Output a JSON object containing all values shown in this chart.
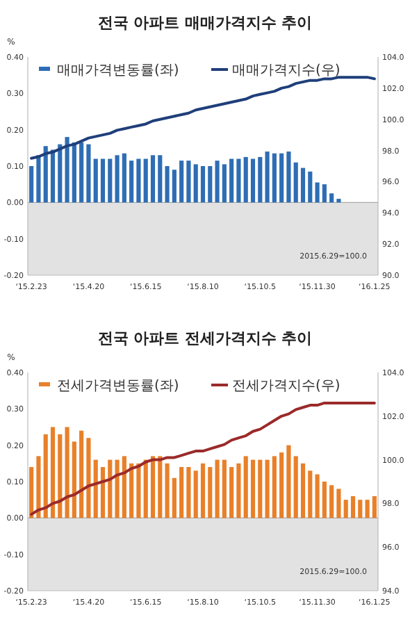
{
  "chart_data": [
    {
      "type": "bar",
      "title": "전국 아파트 매매가격지수 추이",
      "ylabel": "%",
      "legend": "top",
      "annotations": [
        "2015.6.29=100.0"
      ],
      "categories": [
        "‘15.2.23",
        null,
        null,
        null,
        null,
        null,
        null,
        null,
        "‘15.4.20",
        null,
        null,
        null,
        null,
        null,
        null,
        null,
        "‘15.6.15",
        null,
        null,
        null,
        null,
        null,
        null,
        null,
        "‘15.8.10",
        null,
        null,
        null,
        null,
        null,
        null,
        null,
        "‘15.10.5",
        null,
        null,
        null,
        null,
        null,
        null,
        null,
        "‘15.11.30",
        null,
        null,
        null,
        null,
        null,
        null,
        null,
        "‘16.1.25"
      ],
      "series": [
        {
          "name": "매매가격변동률(좌)",
          "color": "#2e6db4",
          "values": [
            0.1,
            0.13,
            0.155,
            0.145,
            0.16,
            0.18,
            0.165,
            0.165,
            0.16,
            0.12,
            0.12,
            0.12,
            0.13,
            0.135,
            0.115,
            0.12,
            0.12,
            0.13,
            0.13,
            0.1,
            0.09,
            0.115,
            0.115,
            0.105,
            0.1,
            0.1,
            0.115,
            0.105,
            0.12,
            0.12,
            0.125,
            0.12,
            0.125,
            0.14,
            0.135,
            0.135,
            0.14,
            0.11,
            0.095,
            0.085,
            0.055,
            0.05,
            0.025,
            0.01,
            0.0,
            0.0,
            0.0,
            0.0,
            0.0
          ]
        },
        {
          "name": "매매가격지수(우)",
          "type": "line",
          "axis": "y2",
          "color": "#1f3f7a",
          "values": [
            97.5,
            97.6,
            97.8,
            97.9,
            98.1,
            98.3,
            98.4,
            98.6,
            98.8,
            98.9,
            99.0,
            99.1,
            99.3,
            99.4,
            99.5,
            99.6,
            99.7,
            99.9,
            100.0,
            100.1,
            100.2,
            100.3,
            100.4,
            100.6,
            100.7,
            100.8,
            100.9,
            101.0,
            101.1,
            101.2,
            101.3,
            101.5,
            101.6,
            101.7,
            101.8,
            102.0,
            102.1,
            102.3,
            102.4,
            102.5,
            102.5,
            102.6,
            102.6,
            102.7,
            102.7,
            102.7,
            102.7,
            102.7,
            102.6
          ]
        }
      ],
      "ylim": [
        -0.2,
        0.4
      ],
      "yticks": [
        {
          "value": -0.2,
          "label": "-0.20"
        },
        {
          "value": -0.1,
          "label": "-0.10"
        },
        {
          "value": 0,
          "label": "0.00"
        },
        {
          "value": 0.1,
          "label": "0.10"
        },
        {
          "value": 0.2,
          "label": "0.20"
        },
        {
          "value": 0.3,
          "label": "0.30"
        },
        {
          "value": 0.4,
          "label": "0.40"
        }
      ],
      "y2lim": [
        90,
        104
      ],
      "y2ticks": [
        {
          "value": 90,
          "label": "90.0"
        },
        {
          "value": 92,
          "label": "92.0"
        },
        {
          "value": 94,
          "label": "94.0"
        },
        {
          "value": 96,
          "label": "96.0"
        },
        {
          "value": 98,
          "label": "98.0"
        },
        {
          "value": 100,
          "label": "100.0"
        },
        {
          "value": 102,
          "label": "102.0"
        },
        {
          "value": 104,
          "label": "104.0"
        }
      ],
      "bands": [
        {
          "axis": "y",
          "from": -0.2,
          "to": 0,
          "color": "#e2e2e2"
        }
      ]
    },
    {
      "type": "bar",
      "title": "전국 아파트  전세가격지수 추이",
      "ylabel": "%",
      "legend": "top",
      "annotations": [
        "2015.6.29=100.0"
      ],
      "categories": [
        "‘15.2.23",
        null,
        null,
        null,
        null,
        null,
        null,
        null,
        "‘15.4.20",
        null,
        null,
        null,
        null,
        null,
        null,
        null,
        "‘15.6.15",
        null,
        null,
        null,
        null,
        null,
        null,
        null,
        "‘15.8.10",
        null,
        null,
        null,
        null,
        null,
        null,
        null,
        "‘15.10.5",
        null,
        null,
        null,
        null,
        null,
        null,
        null,
        "‘15.11.30",
        null,
        null,
        null,
        null,
        null,
        null,
        null,
        "‘16.1.25"
      ],
      "series": [
        {
          "name": "전세가격변동률(좌)",
          "color": "#e8802a",
          "values": [
            0.14,
            0.17,
            0.23,
            0.25,
            0.23,
            0.25,
            0.21,
            0.24,
            0.22,
            0.16,
            0.14,
            0.16,
            0.16,
            0.17,
            0.15,
            0.15,
            0.16,
            0.17,
            0.17,
            0.15,
            0.11,
            0.14,
            0.14,
            0.13,
            0.15,
            0.14,
            0.16,
            0.16,
            0.14,
            0.15,
            0.17,
            0.16,
            0.16,
            0.16,
            0.17,
            0.18,
            0.2,
            0.17,
            0.15,
            0.13,
            0.12,
            0.1,
            0.09,
            0.08,
            0.05,
            0.06,
            0.05,
            0.05,
            0.06
          ]
        },
        {
          "name": "전세가격지수(우)",
          "type": "line",
          "axis": "y2",
          "color": "#9b2a2a",
          "values": [
            97.5,
            97.7,
            97.8,
            98.0,
            98.1,
            98.3,
            98.4,
            98.6,
            98.8,
            98.9,
            99.0,
            99.1,
            99.3,
            99.4,
            99.6,
            99.7,
            99.9,
            100.0,
            100.0,
            100.1,
            100.1,
            100.2,
            100.3,
            100.4,
            100.4,
            100.5,
            100.6,
            100.7,
            100.9,
            101.0,
            101.1,
            101.3,
            101.4,
            101.6,
            101.8,
            102.0,
            102.1,
            102.3,
            102.4,
            102.5,
            102.5,
            102.6,
            102.6,
            102.6,
            102.6,
            102.6,
            102.6,
            102.6,
            102.6
          ]
        }
      ],
      "ylim": [
        -0.2,
        0.4
      ],
      "yticks": [
        {
          "value": -0.2,
          "label": "-0.20"
        },
        {
          "value": -0.1,
          "label": "-0.10"
        },
        {
          "value": 0,
          "label": "0.00"
        },
        {
          "value": 0.1,
          "label": "0.10"
        },
        {
          "value": 0.2,
          "label": "0.20"
        },
        {
          "value": 0.3,
          "label": "0.30"
        },
        {
          "value": 0.4,
          "label": "0.40"
        }
      ],
      "y2lim": [
        94,
        104
      ],
      "y2ticks": [
        {
          "value": 94,
          "label": "94.0"
        },
        {
          "value": 96,
          "label": "96.0"
        },
        {
          "value": 98,
          "label": "98.0"
        },
        {
          "value": 100,
          "label": "100.0"
        },
        {
          "value": 102,
          "label": "102.0"
        },
        {
          "value": 104,
          "label": "104.0"
        }
      ],
      "bands": [
        {
          "axis": "y",
          "from": -0.2,
          "to": 0,
          "color": "#e2e2e2"
        }
      ]
    }
  ]
}
